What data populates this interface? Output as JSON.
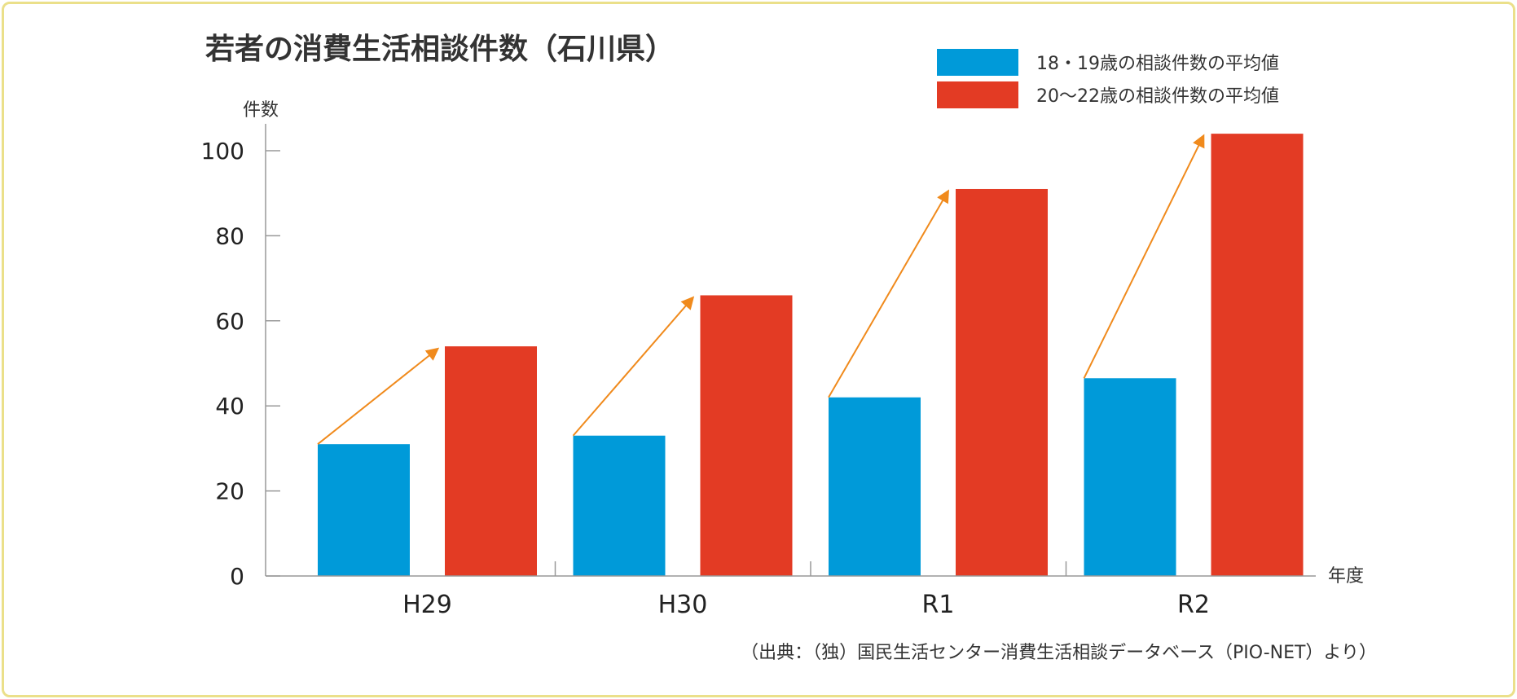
{
  "chart_data": {
    "type": "bar",
    "title": "若者の消費生活相談件数（石川県）",
    "xlabel": "年度",
    "ylabel": "件数",
    "categories": [
      "H29",
      "H30",
      "R1",
      "R2"
    ],
    "series": [
      {
        "name": "18・19歳の相談件数の平均値",
        "color": "#009ad9",
        "values": [
          31,
          33,
          42,
          46.5
        ]
      },
      {
        "name": "20〜22歳の相談件数の平均値",
        "color": "#e33b24",
        "values": [
          54,
          66,
          91,
          104
        ]
      }
    ],
    "yticks": [
      0,
      20,
      40,
      60,
      80,
      100
    ],
    "ylim": [
      0,
      105
    ],
    "legend_position": "top-right",
    "arrow_color": "#f08a1c",
    "grid": false,
    "source": "（出典：（独）国民生活センター消費生活相談データベース（PIO-NET）より）"
  }
}
